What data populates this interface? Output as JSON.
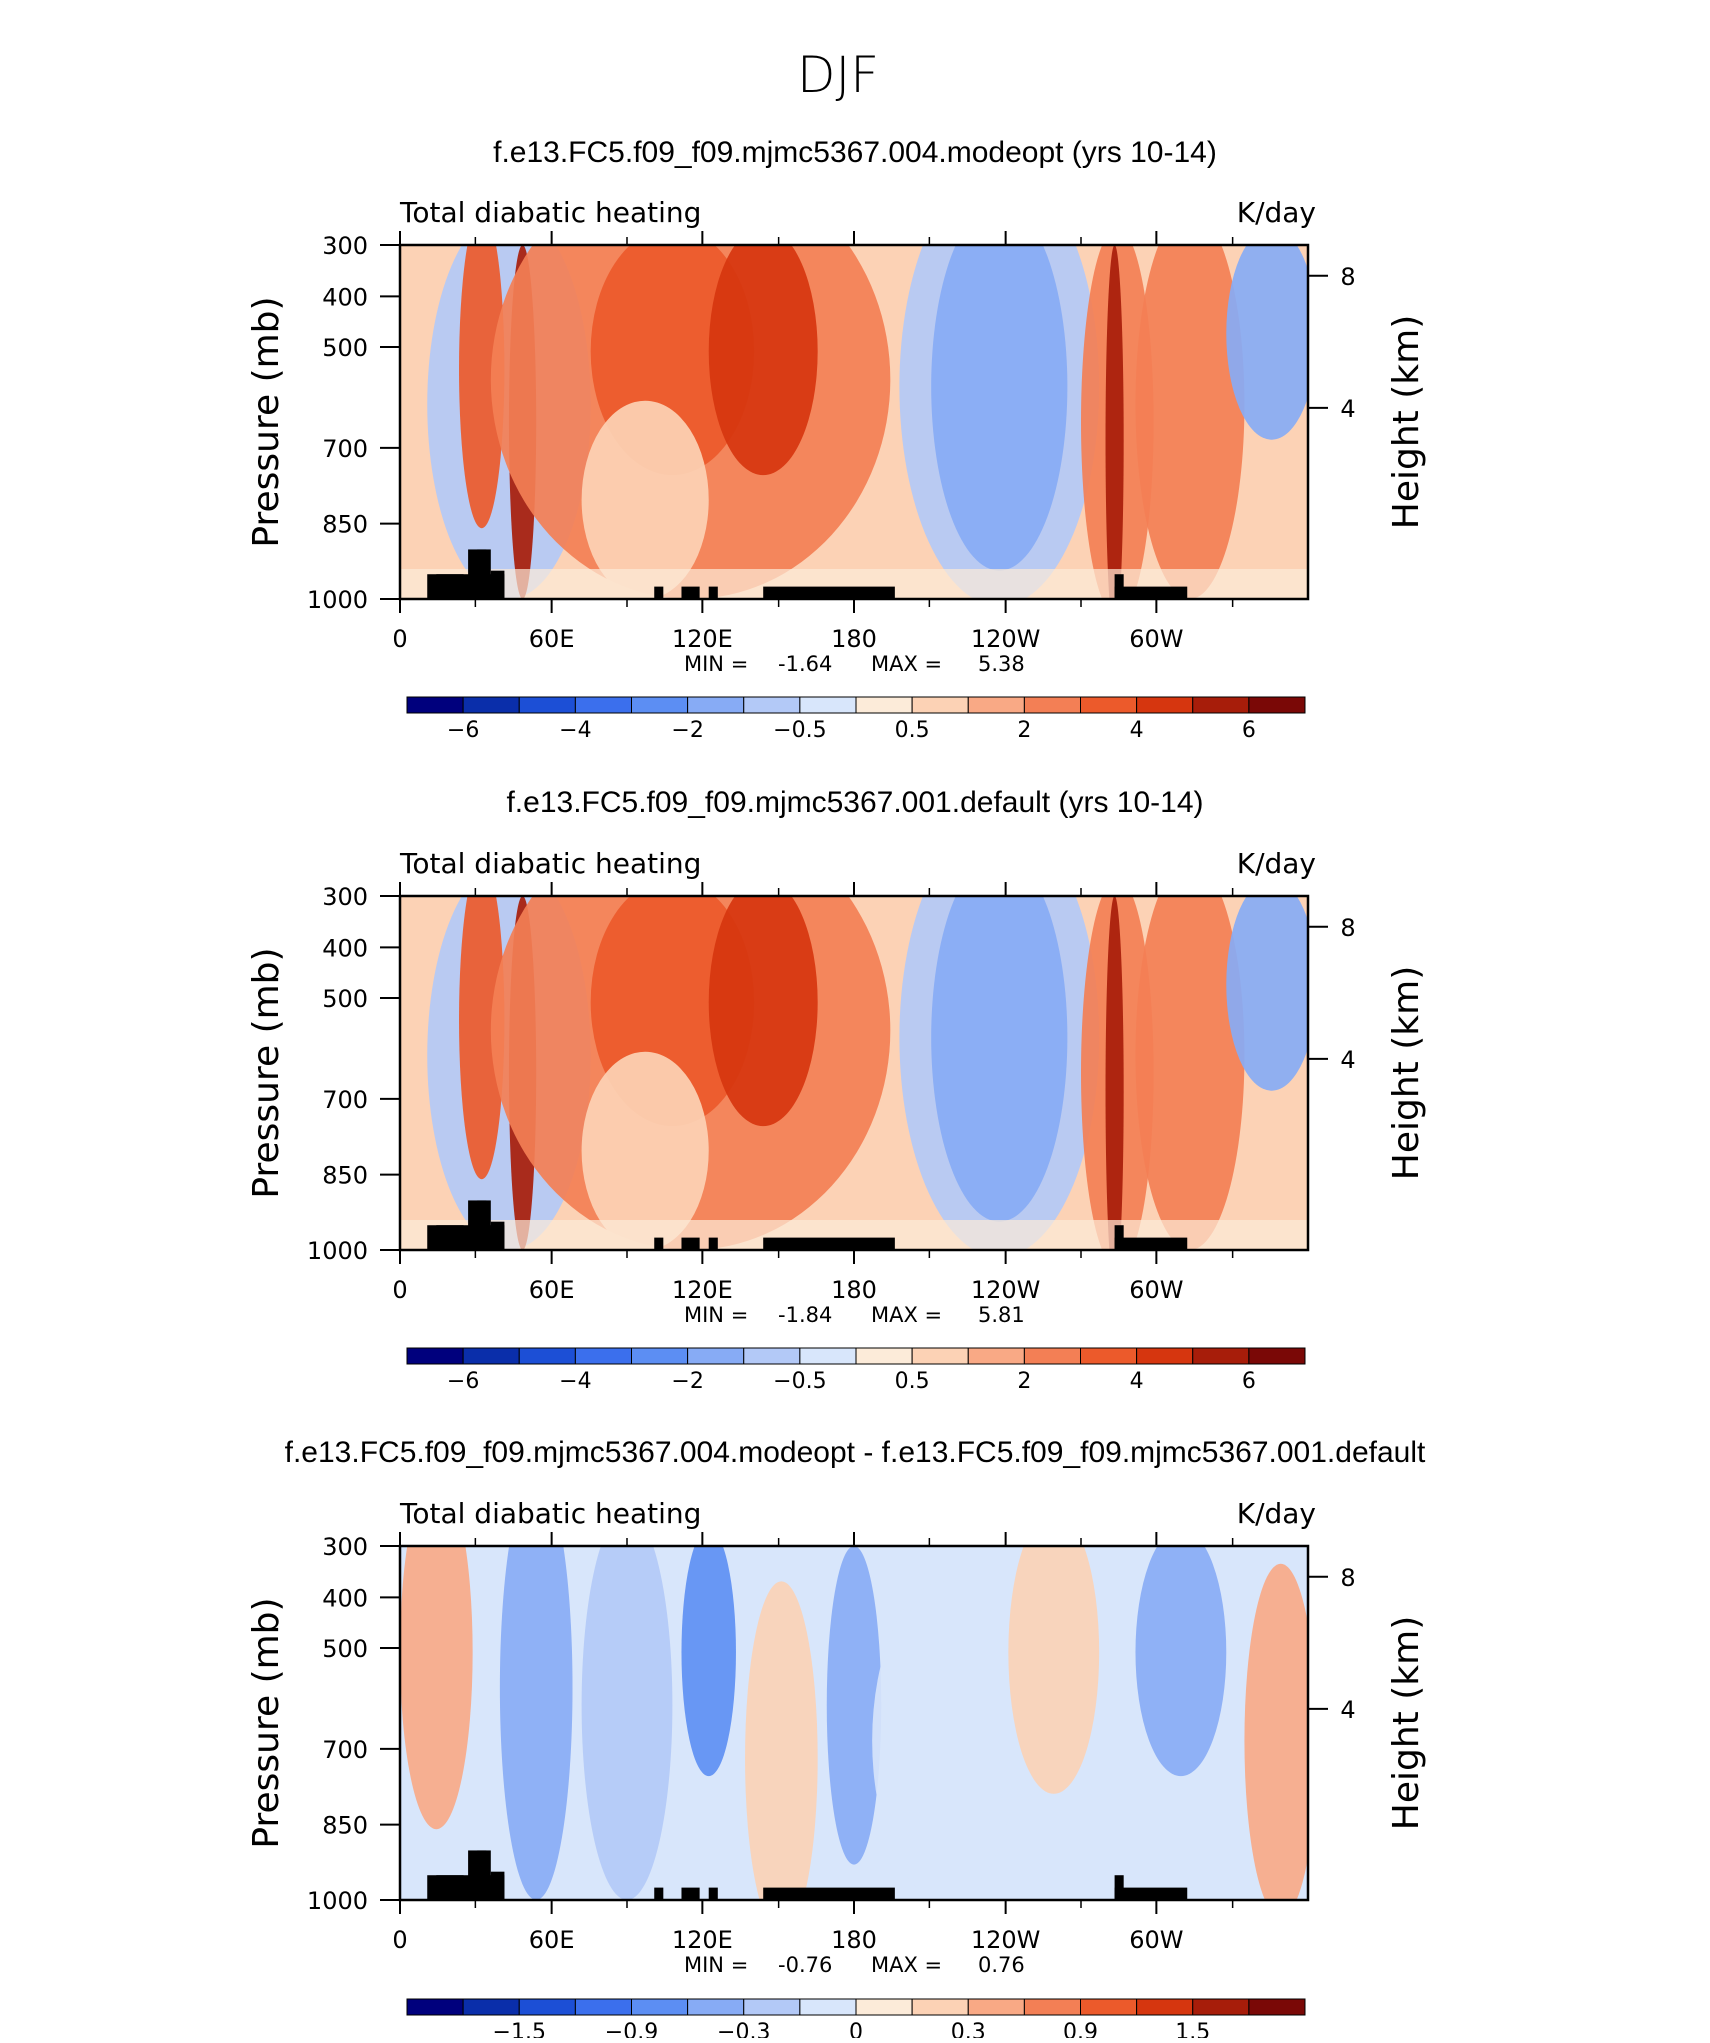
{
  "page_title": "DJF",
  "chart_data": [
    {
      "type": "heatmap",
      "title": "f.e13.FC5.f09_f09.mjmc5367.004.modeopt (yrs 10-14)",
      "left_label": "Total diabatic heating",
      "units": "K/day",
      "ylabel": "Pressure (mb)",
      "ylabel_right": "Height (km)",
      "y_ticks": [
        "300",
        "400",
        "500",
        "500",
        "700",
        "850",
        "1000"
      ],
      "y_ticks_right": [
        "8",
        "4"
      ],
      "x_ticks": [
        "0",
        "60E",
        "120E",
        "180",
        "120W",
        "60W"
      ],
      "min_label": "MIN =",
      "min": "-1.64",
      "max_label": "MAX =",
      "max": "5.38",
      "colorbar_labels": [
        "−6",
        "−4",
        "−2",
        "−0.5",
        "0.5",
        "2",
        "4",
        "6"
      ],
      "colors": [
        "#00007d",
        "#0a2eaa",
        "#1c4fd6",
        "#3b6fed",
        "#5c8ef3",
        "#87abf5",
        "#b3c9f7",
        "#d8e6fb",
        "#fcebd9",
        "#fcd2b5",
        "#f9a985",
        "#f37f55",
        "#ec5a2b",
        "#d6360f",
        "#a71d0a",
        "#7a0806"
      ]
    },
    {
      "type": "heatmap",
      "title": "f.e13.FC5.f09_f09.mjmc5367.001.default (yrs 10-14)",
      "left_label": "Total diabatic heating",
      "units": "K/day",
      "ylabel": "Pressure (mb)",
      "ylabel_right": "Height (km)",
      "y_ticks": [
        "300",
        "400",
        "500",
        "500",
        "700",
        "850",
        "1000"
      ],
      "y_ticks_right": [
        "8",
        "4"
      ],
      "x_ticks": [
        "0",
        "60E",
        "120E",
        "180",
        "120W",
        "60W"
      ],
      "min_label": "MIN =",
      "min": "-1.84",
      "max_label": "MAX =",
      "max": "5.81",
      "colorbar_labels": [
        "−6",
        "−4",
        "−2",
        "−0.5",
        "0.5",
        "2",
        "4",
        "6"
      ],
      "colors": [
        "#00007d",
        "#0a2eaa",
        "#1c4fd6",
        "#3b6fed",
        "#5c8ef3",
        "#87abf5",
        "#b3c9f7",
        "#d8e6fb",
        "#fcebd9",
        "#fcd2b5",
        "#f9a985",
        "#f37f55",
        "#ec5a2b",
        "#d6360f",
        "#a71d0a",
        "#7a0806"
      ]
    },
    {
      "type": "heatmap",
      "title": "f.e13.FC5.f09_f09.mjmc5367.004.modeopt - f.e13.FC5.f09_f09.mjmc5367.001.default",
      "left_label": "Total diabatic heating",
      "units": "K/day",
      "ylabel": "Pressure (mb)",
      "ylabel_right": "Height (km)",
      "y_ticks": [
        "300",
        "400",
        "500",
        "500",
        "700",
        "850",
        "1000"
      ],
      "y_ticks_right": [
        "8",
        "4"
      ],
      "x_ticks": [
        "0",
        "60E",
        "120E",
        "180",
        "120W",
        "60W"
      ],
      "min_label": "MIN =",
      "min": "-0.76",
      "max_label": "MAX =",
      "max": "0.76",
      "colorbar_labels": [
        "−1.5",
        "−0.9",
        "−0.3",
        "0",
        "0.3",
        "0.9",
        "1.5"
      ],
      "colors": [
        "#00007d",
        "#0a2eaa",
        "#1c4fd6",
        "#3b6fed",
        "#5c8ef3",
        "#87abf5",
        "#b3c9f7",
        "#d8e6fb",
        "#fcebd9",
        "#fcd2b5",
        "#f9a985",
        "#f37f55",
        "#ec5a2b",
        "#d6360f",
        "#a71d0a",
        "#7a0806"
      ]
    }
  ]
}
